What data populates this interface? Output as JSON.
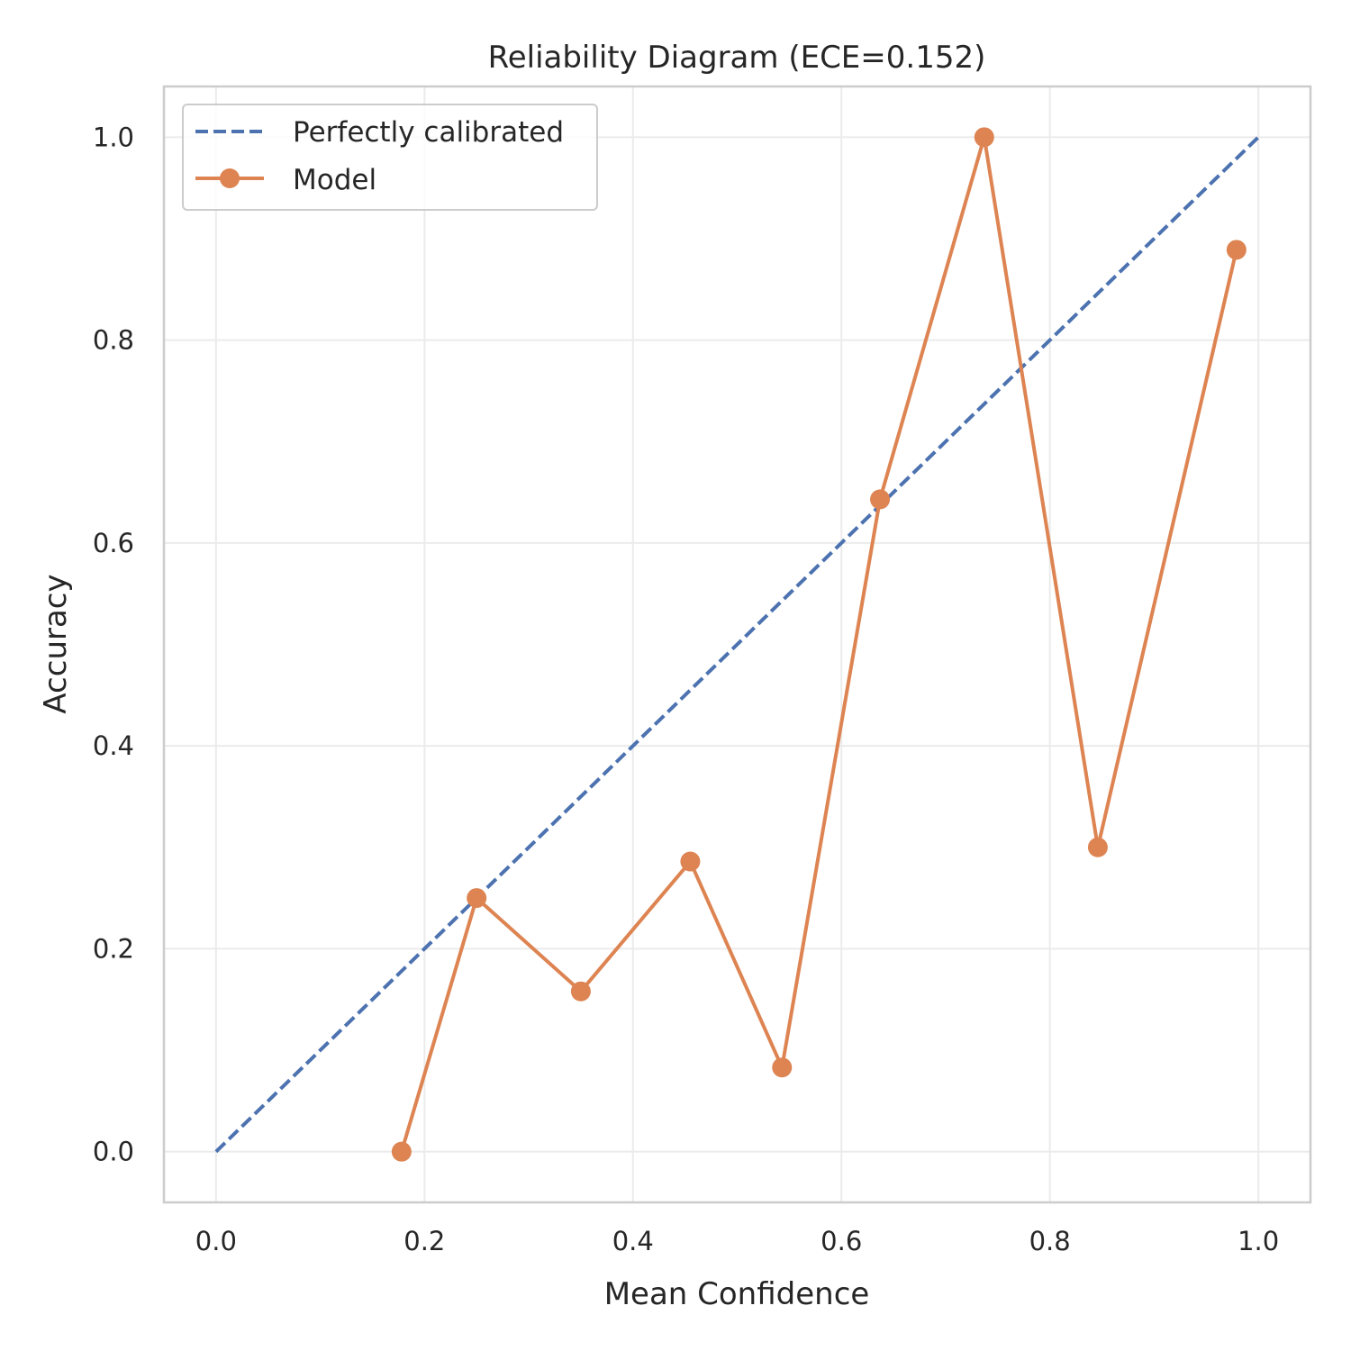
{
  "chart_data": {
    "type": "line",
    "title": "Reliability Diagram (ECE=0.152)",
    "xlabel": "Mean Confidence",
    "ylabel": "Accuracy",
    "xlim": [
      -0.05,
      1.05
    ],
    "ylim": [
      -0.05,
      1.05
    ],
    "xticks": [
      0.0,
      0.2,
      0.4,
      0.6,
      0.8,
      1.0
    ],
    "xtick_labels": [
      "0.0",
      "0.2",
      "0.4",
      "0.6",
      "0.8",
      "1.0"
    ],
    "yticks": [
      0.0,
      0.2,
      0.4,
      0.6,
      0.8,
      1.0
    ],
    "ytick_labels": [
      "0.0",
      "0.2",
      "0.4",
      "0.6",
      "0.8",
      "1.0"
    ],
    "grid": true,
    "legend_position": "upper left",
    "series": [
      {
        "name": "Perfectly calibrated",
        "style": "dashed",
        "color": "#4c72b0",
        "x": [
          0.0,
          1.0
        ],
        "y": [
          0.0,
          1.0
        ]
      },
      {
        "name": "Model",
        "style": "line-with-markers",
        "color": "#dd8452",
        "x": [
          0.178,
          0.25,
          0.35,
          0.455,
          0.543,
          0.637,
          0.737,
          0.846,
          0.979
        ],
        "y": [
          0.0,
          0.25,
          0.158,
          0.286,
          0.083,
          0.643,
          1.0,
          0.3,
          0.889
        ]
      }
    ]
  }
}
